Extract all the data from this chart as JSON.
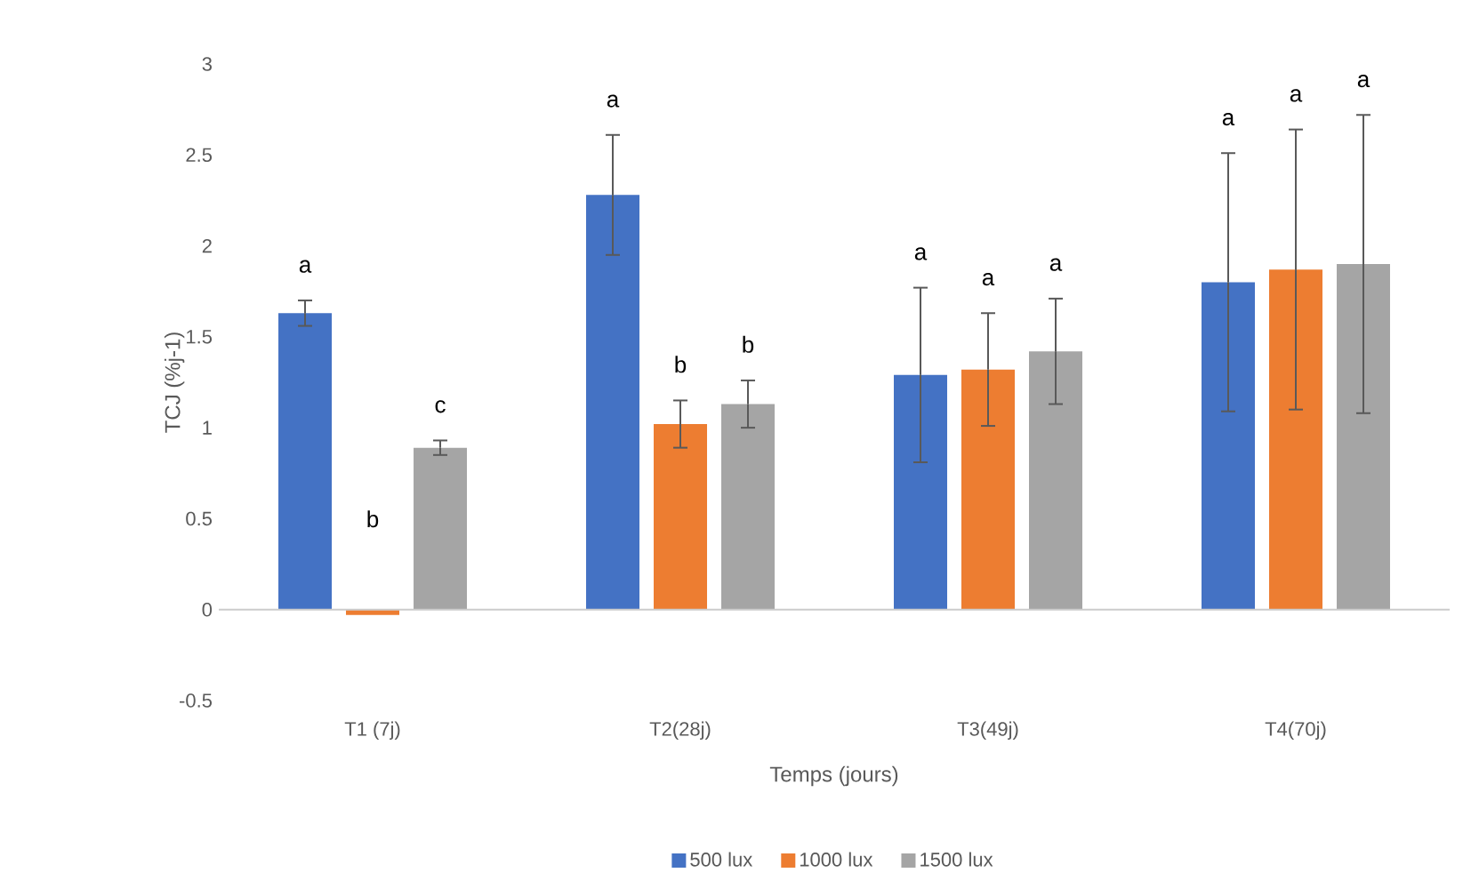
{
  "chart_data": {
    "type": "bar",
    "xlabel": "Temps (jours)",
    "ylabel": "TCJ (%j-1)",
    "categories": [
      "T1 (7j)",
      "T2(28j)",
      "T3(49j)",
      "T4(70j)"
    ],
    "series": [
      {
        "name": "500 lux",
        "color": "#4472c4",
        "values": [
          1.63,
          2.28,
          1.29,
          1.8
        ],
        "errors": [
          0.07,
          0.33,
          0.48,
          0.71
        ]
      },
      {
        "name": "1000 lux",
        "color": "#ed7d31",
        "values": [
          -0.03,
          1.02,
          1.32,
          1.87
        ],
        "errors": [
          null,
          0.13,
          0.31,
          0.77
        ]
      },
      {
        "name": "1500 lux",
        "color": "#a5a5a5",
        "values": [
          0.89,
          1.13,
          1.42,
          1.9
        ],
        "errors": [
          0.04,
          0.13,
          0.29,
          0.82
        ]
      }
    ],
    "annotations": [
      "a",
      "b",
      "c",
      "a",
      "b",
      "b",
      "a",
      "a",
      "a",
      "a",
      "a",
      "a"
    ],
    "ylim": [
      -0.5,
      3
    ],
    "yticks": [
      -0.5,
      0,
      0.5,
      1,
      1.5,
      2,
      2.5,
      3
    ],
    "legend": "bottom"
  }
}
